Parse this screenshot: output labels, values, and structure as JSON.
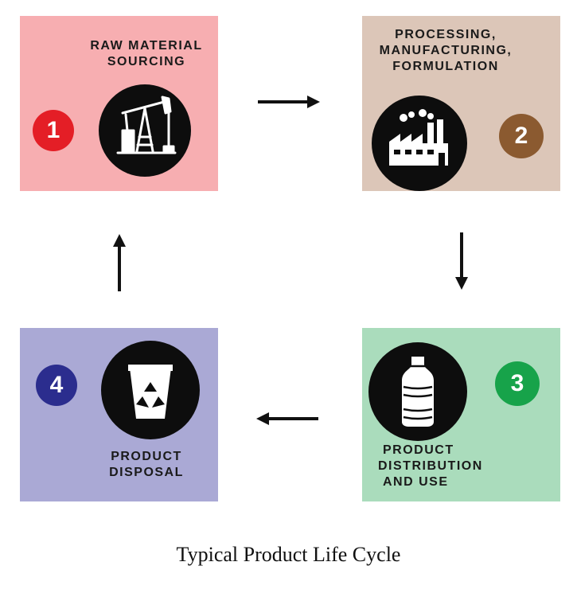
{
  "caption": "Typical Product Life Cycle",
  "stages": [
    {
      "number": "1",
      "title": [
        "RAW MATERIAL",
        "SOURCING"
      ],
      "icon": "oil-pump-icon",
      "box_color": "#f7aeb1",
      "badge_color": "#e41e26"
    },
    {
      "number": "2",
      "title": [
        "PROCESSING,",
        "MANUFACTURING,",
        "FORMULATION"
      ],
      "icon": "factory-icon",
      "box_color": "#dcc6b8",
      "badge_color": "#8b5a30"
    },
    {
      "number": "3",
      "title": [
        "PRODUCT",
        "DISTRIBUTION",
        "AND USE"
      ],
      "icon": "bottle-icon",
      "box_color": "#aadcbc",
      "badge_color": "#17a34a"
    },
    {
      "number": "4",
      "title": [
        "PRODUCT",
        "DISPOSAL"
      ],
      "icon": "recycle-bin-icon",
      "box_color": "#aaa9d5",
      "badge_color": "#2b2d8e"
    }
  ],
  "flow": [
    "1 to 2",
    "2 to 3",
    "3 to 4",
    "4 to 1"
  ],
  "colors": {
    "arrow": "#111111",
    "icon_circle": "#0d0d0d"
  }
}
